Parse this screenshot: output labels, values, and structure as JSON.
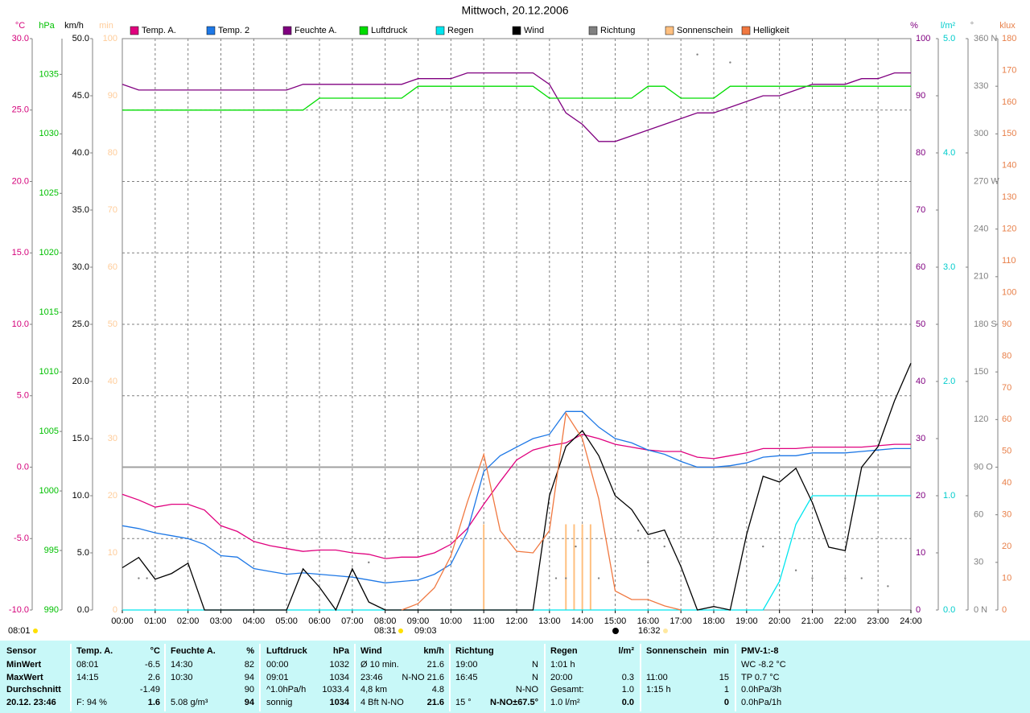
{
  "chart_data": {
    "type": "line",
    "title": "Mittwoch, 20.12.2006",
    "x": [
      0,
      0.5,
      1,
      1.5,
      2,
      2.5,
      3,
      3.5,
      4,
      4.5,
      5,
      5.5,
      6,
      6.5,
      7,
      7.5,
      8,
      8.5,
      9,
      9.5,
      10,
      10.5,
      11,
      11.5,
      12,
      12.5,
      13,
      13.5,
      14,
      14.5,
      15,
      15.5,
      16,
      16.5,
      17,
      17.5,
      18,
      18.5,
      19,
      19.5,
      20,
      20.5,
      21,
      21.5,
      22,
      22.5,
      23,
      23.5,
      24
    ],
    "xlim": [
      0,
      24
    ],
    "xticks": [
      {
        "value": 0,
        "label": "00:00"
      },
      {
        "value": 1,
        "label": "01:00"
      },
      {
        "value": 2,
        "label": "02:00"
      },
      {
        "value": 3,
        "label": "03:00"
      },
      {
        "value": 4,
        "label": "04:00"
      },
      {
        "value": 5,
        "label": "05:00"
      },
      {
        "value": 6,
        "label": "06:00"
      },
      {
        "value": 7,
        "label": "07:00"
      },
      {
        "value": 8,
        "label": "08:00"
      },
      {
        "value": 9,
        "label": "09:00"
      },
      {
        "value": 10,
        "label": "10:00"
      },
      {
        "value": 11,
        "label": "11:00"
      },
      {
        "value": 12,
        "label": "12:00"
      },
      {
        "value": 13,
        "label": "13:00"
      },
      {
        "value": 14,
        "label": "14:00"
      },
      {
        "value": 15,
        "label": "15:00"
      },
      {
        "value": 16,
        "label": "16:00"
      },
      {
        "value": 17,
        "label": "17:00"
      },
      {
        "value": 18,
        "label": "18:00"
      },
      {
        "value": 19,
        "label": "19:00"
      },
      {
        "value": 20,
        "label": "20:00"
      },
      {
        "value": 21,
        "label": "21:00"
      },
      {
        "value": 22,
        "label": "22:00"
      },
      {
        "value": 23,
        "label": "23:00"
      },
      {
        "value": 24,
        "label": "24:00"
      }
    ],
    "grid": true,
    "axes": {
      "temp": {
        "unit": "°C",
        "color": "#d4007a",
        "lim": [
          -10,
          30
        ],
        "ticks": [
          {
            "value": -10,
            "label": "-10.0"
          },
          {
            "value": -5,
            "label": "-5.0"
          },
          {
            "value": 0,
            "label": "0.0"
          },
          {
            "value": 5,
            "label": "5.0"
          },
          {
            "value": 10,
            "label": "10.0"
          },
          {
            "value": 15,
            "label": "15.0"
          },
          {
            "value": 20,
            "label": "20.0"
          },
          {
            "value": 25,
            "label": "25.0"
          },
          {
            "value": 30,
            "label": "30.0"
          }
        ]
      },
      "pressure": {
        "unit": "hPa",
        "color": "#00c000",
        "lim": [
          990,
          1038
        ],
        "ticks": [
          990,
          995,
          1000,
          1005,
          1010,
          1015,
          1020,
          1025,
          1030,
          1035
        ]
      },
      "wind": {
        "unit": "km/h",
        "color": "#000000",
        "lim": [
          0,
          50
        ],
        "ticks": [
          {
            "value": 0,
            "label": "0.0"
          },
          {
            "value": 5,
            "label": "5.0"
          },
          {
            "value": 10,
            "label": "10.0"
          },
          {
            "value": 15,
            "label": "15.0"
          },
          {
            "value": 20,
            "label": "20.0"
          },
          {
            "value": 25,
            "label": "25.0"
          },
          {
            "value": 30,
            "label": "30.0"
          },
          {
            "value": 35,
            "label": "35.0"
          },
          {
            "value": 40,
            "label": "40.0"
          },
          {
            "value": 45,
            "label": "45.0"
          },
          {
            "value": 50,
            "label": "50.0"
          }
        ]
      },
      "sun": {
        "unit": "min",
        "color": "#ffcc99",
        "lim": [
          0,
          100
        ],
        "ticks": [
          0,
          10,
          20,
          30,
          40,
          50,
          60,
          70,
          80,
          90,
          100
        ]
      },
      "humidity": {
        "unit": "%",
        "color": "#800080",
        "lim": [
          0,
          100
        ],
        "ticks": [
          0,
          10,
          20,
          30,
          40,
          50,
          60,
          70,
          80,
          90,
          100
        ]
      },
      "rain": {
        "unit": "l/m²",
        "color": "#00cccc",
        "lim": [
          0,
          5
        ],
        "ticks": [
          {
            "value": 0,
            "label": "0.0"
          },
          {
            "value": 1,
            "label": "1.0"
          },
          {
            "value": 2,
            "label": "2.0"
          },
          {
            "value": 3,
            "label": "3.0"
          },
          {
            "value": 4,
            "label": "4.0"
          },
          {
            "value": 5,
            "label": "5.0"
          }
        ]
      },
      "direction": {
        "unit": "°",
        "color": "#808080",
        "lim": [
          0,
          360
        ],
        "ticks": [
          {
            "value": 0,
            "label": "0 N"
          },
          {
            "value": 30,
            "label": "30"
          },
          {
            "value": 60,
            "label": "60"
          },
          {
            "value": 90,
            "label": "90 O"
          },
          {
            "value": 120,
            "label": "120"
          },
          {
            "value": 150,
            "label": "150"
          },
          {
            "value": 180,
            "label": "180 S"
          },
          {
            "value": 210,
            "label": "210"
          },
          {
            "value": 240,
            "label": "240"
          },
          {
            "value": 270,
            "label": "270 W"
          },
          {
            "value": 300,
            "label": "300"
          },
          {
            "value": 330,
            "label": "330"
          },
          {
            "value": 360,
            "label": "360 N"
          }
        ]
      },
      "light": {
        "unit": "klux",
        "color": "#e8804a",
        "lim": [
          0,
          180
        ],
        "ticks": [
          0,
          10,
          20,
          30,
          40,
          50,
          60,
          70,
          80,
          90,
          100,
          110,
          120,
          130,
          140,
          150,
          160,
          170,
          180
        ]
      }
    },
    "series": [
      {
        "name": "Temp. A.",
        "type": "line",
        "color": "#e0007e",
        "axis": "temp",
        "values": [
          -1.9,
          -2.3,
          -2.8,
          -2.6,
          -2.6,
          -3.0,
          -4.1,
          -4.5,
          -5.2,
          -5.5,
          -5.7,
          -5.9,
          -5.8,
          -5.8,
          -6.0,
          -6.1,
          -6.4,
          -6.3,
          -6.3,
          -6.0,
          -5.4,
          -4.3,
          -2.6,
          -1.0,
          0.5,
          1.2,
          1.5,
          1.7,
          2.3,
          2.0,
          1.6,
          1.4,
          1.2,
          1.1,
          1.1,
          0.7,
          0.6,
          0.8,
          1.0,
          1.3,
          1.3,
          1.3,
          1.4,
          1.4,
          1.4,
          1.4,
          1.5,
          1.6,
          1.6
        ]
      },
      {
        "name": "Temp. 2",
        "type": "line",
        "color": "#1e78e6",
        "axis": "temp",
        "values": [
          -4.1,
          -4.3,
          -4.6,
          -4.8,
          -5.0,
          -5.4,
          -6.2,
          -6.3,
          -7.1,
          -7.3,
          -7.5,
          -7.4,
          -7.5,
          -7.6,
          -7.7,
          -7.9,
          -8.1,
          -8.0,
          -7.9,
          -7.5,
          -6.8,
          -4.5,
          -0.3,
          0.8,
          1.4,
          2.0,
          2.3,
          3.9,
          3.9,
          2.8,
          2.0,
          1.7,
          1.2,
          0.9,
          0.4,
          0.0,
          0.0,
          0.1,
          0.3,
          0.7,
          0.8,
          0.8,
          1.0,
          1.0,
          1.0,
          1.1,
          1.2,
          1.3,
          1.3
        ]
      },
      {
        "name": "Feuchte A.",
        "type": "line",
        "color": "#800080",
        "axis": "humidity",
        "values": [
          92,
          91,
          91,
          91,
          91,
          91,
          91,
          91,
          91,
          91,
          91,
          92,
          92,
          92,
          92,
          92,
          92,
          92,
          93,
          93,
          93,
          94,
          94,
          94,
          94,
          94,
          92,
          87,
          85,
          82,
          82,
          83,
          84,
          85,
          86,
          87,
          87,
          88,
          89,
          90,
          90,
          91,
          92,
          92,
          92,
          93,
          93,
          94,
          94
        ]
      },
      {
        "name": "Luftdruck",
        "type": "line",
        "color": "#00dd00",
        "axis": "pressure",
        "values": [
          1032,
          1032,
          1032,
          1032,
          1032,
          1032,
          1032,
          1032,
          1032,
          1032,
          1032,
          1032,
          1033,
          1033,
          1033,
          1033,
          1033,
          1033,
          1034,
          1034,
          1034,
          1034,
          1034,
          1034,
          1034,
          1034,
          1033,
          1033,
          1033,
          1033,
          1033,
          1033,
          1034,
          1034,
          1033,
          1033,
          1033,
          1034,
          1034,
          1034,
          1034,
          1034,
          1034,
          1034,
          1034,
          1034,
          1034,
          1034,
          1034
        ]
      },
      {
        "name": "Regen",
        "type": "line",
        "color": "#00e5ee",
        "axis": "rain",
        "values": [
          0,
          0,
          0,
          0,
          0,
          0,
          0,
          0,
          0,
          0,
          0,
          0,
          0,
          0,
          0,
          0,
          0,
          0,
          0,
          0,
          0,
          0,
          0,
          0,
          0,
          0,
          0,
          0,
          0,
          0,
          0,
          0,
          0,
          0,
          0,
          0,
          0,
          0,
          0,
          0,
          0.25,
          0.75,
          1.0,
          1.0,
          1.0,
          1.0,
          1.0,
          1.0,
          1.0
        ]
      },
      {
        "name": "Wind",
        "type": "line",
        "color": "#000000",
        "axis": "wind",
        "values": [
          3.7,
          4.6,
          2.7,
          3.2,
          4.1,
          0,
          0,
          0,
          0,
          0,
          0,
          3.6,
          2.0,
          0,
          3.6,
          0.7,
          0,
          0,
          0,
          0,
          0,
          0,
          0,
          0,
          0,
          0,
          10.0,
          14.3,
          15.7,
          13.5,
          10.0,
          8.8,
          6.6,
          7.0,
          3.8,
          0,
          0.3,
          0,
          6.6,
          11.7,
          11.2,
          12.4,
          9.4,
          5.5,
          5.2,
          12.5,
          14.3,
          18.3,
          21.6
        ]
      },
      {
        "name": "Richtung",
        "type": "scatter",
        "color": "#808080",
        "axis": "direction",
        "x": [
          0.5,
          0.75,
          7.5,
          13.2,
          13.5,
          13.8,
          14.5,
          15.7,
          16.0,
          16.5,
          17.5,
          18.5,
          19.5,
          20.5,
          21.0,
          22.0,
          22.5,
          23.3
        ],
        "values": [
          20,
          20,
          30,
          20,
          20,
          40,
          20,
          50,
          30,
          40,
          350,
          345,
          40,
          25,
          20,
          20,
          20,
          15
        ]
      },
      {
        "name": "Sonnenschein",
        "type": "bar",
        "color": "#ffc080",
        "axis": "sun",
        "x": [
          11.0,
          13.5,
          13.75,
          14.0,
          14.25
        ],
        "values": [
          15,
          15,
          15,
          15,
          15
        ]
      },
      {
        "name": "Helligkeit",
        "type": "line",
        "color": "#f07840",
        "axis": "light",
        "values": [
          null,
          null,
          null,
          null,
          null,
          null,
          null,
          null,
          null,
          null,
          null,
          null,
          null,
          null,
          null,
          null,
          null,
          0,
          2,
          7,
          17,
          34,
          49,
          25,
          18.5,
          18,
          25,
          62,
          54,
          35,
          6,
          3.3,
          3.3,
          1.3,
          0,
          null,
          null,
          null,
          null,
          null,
          null,
          null,
          null,
          null,
          null,
          null,
          null,
          null,
          null
        ]
      }
    ],
    "annotations": [
      "08:01",
      "08:31",
      "09:03",
      "16:32"
    ]
  },
  "table": {
    "panels": [
      {
        "title": "Sensor",
        "rows": [
          [
            "MinWert"
          ],
          [
            "MaxWert"
          ],
          [
            "Durchschnitt"
          ],
          [
            "20.12. 23:46"
          ]
        ]
      },
      {
        "title": "Temp. A.",
        "unit": "°C",
        "rows": [
          [
            "08:01",
            "-6.5"
          ],
          [
            "14:15",
            "2.6"
          ],
          [
            null,
            "-1.49"
          ],
          [
            "F: 94 %",
            "1.6"
          ]
        ]
      },
      {
        "title": "Feuchte A.",
        "unit": "%",
        "rows": [
          [
            "14:30",
            "82"
          ],
          [
            "10:30",
            "94"
          ],
          [
            null,
            "90"
          ],
          [
            "5.08 g/m³",
            "94"
          ]
        ]
      },
      {
        "title": "Luftdruck",
        "unit": "hPa",
        "rows": [
          [
            "00:00",
            "1032"
          ],
          [
            "09:01",
            "1034"
          ],
          [
            "^1.0hPa/h",
            "1033.4"
          ],
          [
            "sonnig",
            "1034"
          ]
        ]
      },
      {
        "title": "Wind",
        "unit": "km/h",
        "rows": [
          [
            "Ø 10 min.",
            "21.6"
          ],
          [
            "23:46",
            "N-NO 21.6"
          ],
          [
            "4,8 km",
            "4.8"
          ],
          [
            "4 Bft N-NO",
            "21.6"
          ]
        ]
      },
      {
        "title": "Richtung",
        "rows": [
          [
            "19:00",
            "N"
          ],
          [
            "16:45",
            "N"
          ],
          [
            null,
            "N-NO"
          ],
          [
            "15 °",
            "N-NO±67.5°"
          ]
        ]
      },
      {
        "title": "Regen",
        "unit": "l/m²",
        "rows": [
          [
            "1:01 h",
            null
          ],
          [
            "20:00",
            "0.3"
          ],
          [
            "Gesamt:",
            "1.0"
          ],
          [
            "1.0 l/m²",
            "0.0"
          ]
        ]
      },
      {
        "title": "Sonnenschein",
        "unit": "min",
        "rows": [
          [
            null,
            null
          ],
          [
            "11:00",
            "15"
          ],
          [
            "1:15 h",
            "1"
          ],
          [
            null,
            "0"
          ]
        ]
      },
      {
        "title": "PMV-1:-8",
        "rows": [
          [
            "WC -8.2 °C"
          ],
          [
            "TP 0.7 °C"
          ],
          [
            "0.0hPa/3h"
          ],
          [
            "0.0hPa/1h"
          ]
        ]
      }
    ]
  }
}
